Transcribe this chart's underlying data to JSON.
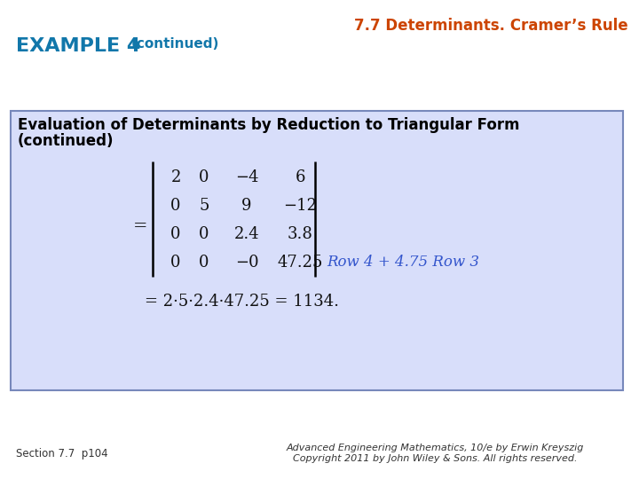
{
  "title": "7.7 Determinants. Cramer’s Rule",
  "title_color": "#CC4400",
  "example_label": "EXAMPLE 4",
  "example_label_color": "#1177AA",
  "continued_label": "(continued)",
  "continued_color": "#1177AA",
  "box_bg": "#D8DEFA",
  "box_border": "#7788BB",
  "matrix_rows": [
    [
      "2",
      "0",
      "−4",
      "6"
    ],
    [
      "0",
      "5",
      "9",
      "−12"
    ],
    [
      "0",
      "0",
      "2.4",
      "3.8"
    ],
    [
      "0",
      "0",
      "−0",
      "47.25"
    ]
  ],
  "row_annotation": "Row 4 + 4.75 Row 3",
  "row_annotation_color": "#3355CC",
  "formula": "= 2·5·2.4·47.25 = 1134.",
  "footer_left": "Section 7.7  p104",
  "footer_right_line1": "Advanced Engineering Mathematics, 10/e by Erwin Kreyszig",
  "footer_right_line2": "Copyright 2011 by John Wiley & Sons. All rights reserved.",
  "text_color": "#000000",
  "matrix_color": "#111111",
  "bg_color": "#FFFFFF"
}
